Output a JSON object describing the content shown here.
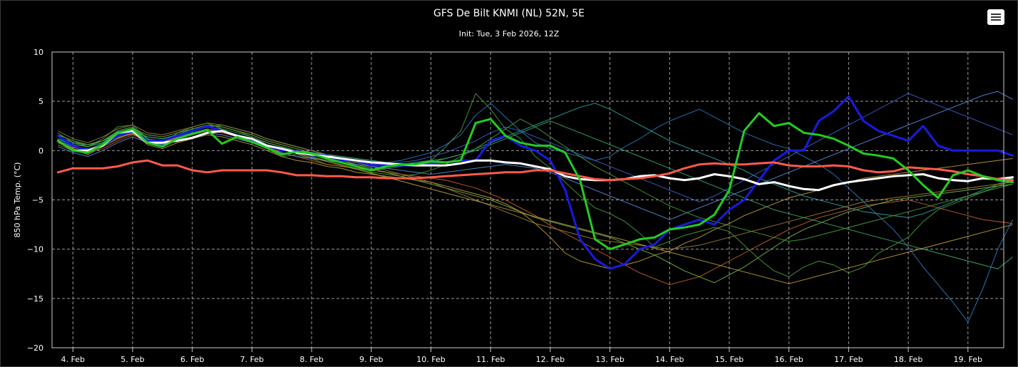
{
  "header": {
    "title": "GFS De Bilt KNMI (NL) 52N, 5E",
    "subtitle": "Init: Tue, 3 Feb 2026, 12Z"
  },
  "toolbar": {
    "menu_icon": "hamburger-menu-icon"
  },
  "chart_data": {
    "type": "line",
    "title": "GFS De Bilt KNMI (NL) 52N, 5E",
    "subtitle": "Init: Tue, 3 Feb 2026, 12Z",
    "xlabel": "",
    "ylabel": "850 hPa Temp. (°C)",
    "x_unit": "days (Feb 2026)",
    "xlim": [
      3.65,
      19.6
    ],
    "ylim": [
      -20,
      10
    ],
    "yticks": [
      10,
      5,
      0,
      -5,
      -10,
      -15,
      -20
    ],
    "yticks_labels": [
      "10",
      "5",
      "0",
      "−5",
      "−10",
      "−15",
      "−20"
    ],
    "xticks": [
      4,
      5,
      6,
      7,
      8,
      9,
      10,
      11,
      12,
      13,
      14,
      15,
      16,
      17,
      18,
      19
    ],
    "xticks_labels": [
      "4. Feb",
      "5. Feb",
      "6. Feb",
      "7. Feb",
      "8. Feb",
      "9. Feb",
      "10. Feb",
      "11. Feb",
      "12. Feb",
      "13. Feb",
      "14. Feb",
      "15. Feb",
      "16. Feb",
      "17. Feb",
      "18. Feb",
      "19. Feb"
    ],
    "grid": true,
    "background": "#000000",
    "x_step_days": 0.25,
    "x_start_day": 3.75,
    "ensemble_colors": [
      "#4a9b3a",
      "#b89a3c",
      "#2e78b8",
      "#2ea3a3",
      "#c0602a",
      "#7ab04a",
      "#3c5fc8",
      "#9a7a3a",
      "#38a86a",
      "#5a8ad8"
    ],
    "series": [
      {
        "color": "#1a1ae0",
        "width": 3,
        "values": [
          1.5,
          0.5,
          0,
          0.5,
          1.5,
          2,
          1,
          1,
          1.5,
          2,
          2.5,
          2,
          1.5,
          1,
          0.5,
          0,
          0,
          -0.5,
          -0.5,
          -1,
          -1,
          -1.5,
          -1.5,
          -1.5,
          -1.5,
          -1.3,
          -1.2,
          -1.0,
          -1.0,
          1.0,
          1.5,
          0.5,
          0.0,
          -1.0,
          -4.0,
          -9.0,
          -11.0,
          -12.0,
          -11.5,
          -10.0,
          -9.5,
          -8.0,
          -7.5,
          -7.0,
          -7.5,
          -6.0,
          -5.0,
          -3.0,
          -1.0,
          0.0,
          0.0,
          3.0,
          4.0,
          5.5,
          3.0,
          2.0,
          1.5,
          1.0,
          2.5,
          0.5,
          0.0,
          0.0,
          0.0,
          0.0,
          -0.5
        ]
      },
      {
        "color": "#ffffff",
        "width": 3,
        "values": [
          1,
          0,
          0,
          0.5,
          1.8,
          2,
          0.8,
          0.8,
          1,
          1.3,
          1.8,
          2,
          1.5,
          1.2,
          0.5,
          0.2,
          -0.2,
          -0.4,
          -0.6,
          -0.8,
          -1,
          -1.2,
          -1.3,
          -1.4,
          -1.5,
          -1.5,
          -1.5,
          -1.3,
          -1.0,
          -1.0,
          -1.2,
          -1.3,
          -1.6,
          -1.9,
          -2.6,
          -2.9,
          -3.0,
          -3.0,
          -2.9,
          -2.6,
          -2.5,
          -2.8,
          -3.0,
          -2.8,
          -2.4,
          -2.6,
          -2.9,
          -3.4,
          -3.2,
          -3.6,
          -3.9,
          -4.0,
          -3.5,
          -3.2,
          -3.0,
          -2.8,
          -2.6,
          -2.5,
          -2.4,
          -2.8,
          -3.0,
          -3.1,
          -2.8,
          -2.9,
          -2.7
        ]
      },
      {
        "color": "#ff5a4a",
        "width": 3,
        "values": [
          -2.2,
          -1.8,
          -1.8,
          -1.8,
          -1.6,
          -1.2,
          -1.0,
          -1.5,
          -1.5,
          -2.0,
          -2.2,
          -2.0,
          -2.0,
          -2.0,
          -2.0,
          -2.2,
          -2.5,
          -2.5,
          -2.6,
          -2.6,
          -2.7,
          -2.7,
          -2.8,
          -2.8,
          -2.8,
          -2.7,
          -2.6,
          -2.5,
          -2.4,
          -2.3,
          -2.2,
          -2.2,
          -2.0,
          -2.0,
          -2.3,
          -2.6,
          -2.9,
          -3.0,
          -2.9,
          -2.8,
          -2.6,
          -2.3,
          -1.8,
          -1.4,
          -1.3,
          -1.4,
          -1.4,
          -1.3,
          -1.2,
          -1.5,
          -1.6,
          -1.6,
          -1.5,
          -1.6,
          -2.0,
          -2.2,
          -2.1,
          -1.7,
          -1.8,
          -1.9,
          -2.1,
          -2.4,
          -2.6,
          -2.9,
          -3.0
        ]
      },
      {
        "color": "#22cc22",
        "width": 3,
        "values": [
          1,
          0,
          -0.2,
          0.6,
          1.8,
          2.2,
          0.8,
          0.4,
          1.2,
          1.7,
          2.1,
          0.7,
          1.4,
          0.9,
          0.3,
          -0.4,
          -0.1,
          -0.3,
          -0.8,
          -1.2,
          -1.6,
          -2.0,
          -1.6,
          -1.4,
          -1.4,
          -1.1,
          -1.2,
          -1.0,
          2.8,
          3.2,
          1.5,
          0.8,
          0.5,
          0.5,
          -0.2,
          -3.0,
          -9.0,
          -10.0,
          -9.5,
          -9.0,
          -8.8,
          -8.0,
          -7.8,
          -7.5,
          -6.5,
          -4.0,
          2.0,
          3.8,
          2.5,
          2.8,
          1.8,
          1.6,
          1.2,
          0.5,
          -0.3,
          -0.5,
          -0.8,
          -2.0,
          -3.5,
          -4.8,
          -2.5,
          -2.0,
          -2.6,
          -3.0,
          -3.2
        ]
      }
    ],
    "ensemble": [
      [
        1.8,
        0.8,
        0.4,
        1.2,
        2.4,
        2.6,
        1.2,
        0.6,
        1.8,
        2.4,
        2.8,
        2.2,
        1.4,
        1.0,
        0.2,
        -0.6,
        -0.4,
        -0.8,
        -1.4,
        -1.6,
        -1.8,
        -2.0,
        -1.8,
        -1.6,
        -1.2,
        -1.0,
        0.4,
        2.0,
        5.8,
        4.2,
        2.2,
        1.2,
        -0.6,
        -1.8,
        -3.2,
        -4.6,
        -5.8,
        -6.4,
        -7.2,
        -8.4,
        -9.8,
        -9.2,
        -8.6,
        -8.2,
        -7.8,
        -8.2,
        -9.6,
        -11.0,
        -12.2,
        -12.8,
        -11.8,
        -11.2,
        -11.6,
        -12.4,
        -11.8,
        -10.4,
        -9.6,
        -8.8,
        -7.2,
        -6.0,
        -5.4,
        -4.8,
        -4.2,
        -3.6,
        -3.0
      ],
      [
        0.8,
        0.2,
        -0.4,
        0.4,
        1.2,
        1.8,
        0.6,
        0.2,
        0.8,
        1.2,
        1.6,
        1.4,
        1.0,
        0.6,
        0.0,
        -0.6,
        -1.0,
        -1.2,
        -1.6,
        -1.8,
        -2.2,
        -2.4,
        -2.6,
        -2.8,
        -3.0,
        -3.2,
        -3.6,
        -4.0,
        -4.4,
        -4.8,
        -5.4,
        -6.2,
        -7.4,
        -8.8,
        -10.4,
        -11.2,
        -11.6,
        -12.0,
        -11.6,
        -11.2,
        -10.6,
        -10.2,
        -9.4,
        -8.8,
        -8.0,
        -7.4,
        -6.6,
        -6.0,
        -5.4,
        -4.8,
        -4.4,
        -4.0,
        -3.6,
        -3.2,
        -2.8,
        -2.6,
        -2.4,
        -2.2,
        -2.0,
        -1.8,
        -1.6,
        -1.4,
        -1.2,
        -1.0,
        -0.8
      ],
      [
        1.2,
        0.4,
        0.0,
        0.8,
        2.0,
        2.4,
        1.0,
        0.6,
        1.4,
        2.0,
        2.4,
        2.0,
        1.6,
        1.2,
        0.6,
        0.2,
        0.0,
        -0.2,
        -0.4,
        -0.6,
        -0.8,
        -1.0,
        -1.2,
        -1.0,
        -0.6,
        -0.2,
        0.6,
        1.6,
        3.6,
        4.8,
        3.4,
        2.0,
        0.8,
        0.2,
        -0.2,
        -0.6,
        -1.0,
        -0.6,
        0.4,
        1.2,
        2.2,
        3.0,
        3.6,
        4.2,
        3.4,
        2.6,
        1.8,
        1.2,
        0.6,
        0.2,
        -0.6,
        -1.4,
        -2.4,
        -3.8,
        -5.2,
        -6.6,
        -8.0,
        -9.8,
        -11.8,
        -13.6,
        -15.4,
        -17.4,
        -14.0,
        -10.0,
        -7.0
      ],
      [
        1.4,
        0.8,
        0.6,
        1.0,
        1.6,
        2.0,
        1.4,
        1.2,
        1.6,
        2.0,
        2.4,
        2.6,
        2.2,
        1.8,
        1.2,
        0.8,
        0.4,
        0.0,
        -0.4,
        -0.8,
        -1.2,
        -1.4,
        -1.6,
        -1.6,
        -1.4,
        -1.2,
        -0.8,
        -0.4,
        0.2,
        0.8,
        1.4,
        2.0,
        2.6,
        3.2,
        3.8,
        4.4,
        4.8,
        4.2,
        3.4,
        2.6,
        1.8,
        1.0,
        0.4,
        -0.2,
        -0.8,
        -1.4,
        -2.0,
        -2.8,
        -3.4,
        -4.0,
        -4.6,
        -5.0,
        -5.4,
        -5.8,
        -6.2,
        -6.4,
        -6.6,
        -6.8,
        -6.4,
        -5.8,
        -5.2,
        -4.6,
        -4.0,
        -3.4,
        -2.8
      ],
      [
        0.6,
        0.0,
        -0.2,
        0.2,
        1.0,
        1.6,
        1.0,
        0.8,
        1.2,
        1.6,
        2.0,
        1.8,
        1.4,
        1.0,
        0.4,
        -0.2,
        -0.6,
        -1.0,
        -1.4,
        -1.6,
        -1.8,
        -2.0,
        -2.2,
        -2.4,
        -2.6,
        -2.8,
        -3.0,
        -3.4,
        -3.8,
        -4.4,
        -5.0,
        -5.8,
        -6.6,
        -7.6,
        -8.4,
        -9.2,
        -10.0,
        -10.8,
        -11.6,
        -12.4,
        -13.0,
        -13.6,
        -13.2,
        -12.8,
        -12.0,
        -11.2,
        -10.4,
        -9.6,
        -8.8,
        -8.0,
        -7.4,
        -6.8,
        -6.4,
        -6.0,
        -5.6,
        -5.4,
        -5.2,
        -5.0,
        -5.4,
        -5.8,
        -6.2,
        -6.6,
        -7.0,
        -7.2,
        -7.4
      ],
      [
        1.6,
        1.0,
        0.6,
        1.0,
        1.8,
        2.2,
        1.6,
        1.4,
        1.8,
        2.2,
        2.6,
        2.4,
        2.0,
        1.6,
        1.0,
        0.6,
        0.2,
        -0.2,
        -0.6,
        -1.0,
        -1.4,
        -1.8,
        -2.2,
        -2.6,
        -3.0,
        -3.4,
        -3.8,
        -4.2,
        -4.6,
        -5.0,
        -5.6,
        -6.2,
        -6.8,
        -7.2,
        -7.6,
        -8.0,
        -8.4,
        -8.8,
        -9.4,
        -10.0,
        -10.6,
        -11.4,
        -12.2,
        -12.8,
        -13.4,
        -12.6,
        -11.8,
        -10.8,
        -9.8,
        -8.8,
        -8.0,
        -7.4,
        -6.8,
        -6.2,
        -5.8,
        -5.4,
        -5.0,
        -4.8,
        -4.6,
        -4.4,
        -4.2,
        -4.0,
        -3.8,
        -3.6,
        -3.4
      ],
      [
        1.0,
        0.4,
        0.2,
        0.6,
        1.4,
        1.8,
        1.2,
        1.0,
        1.4,
        1.8,
        2.2,
        2.0,
        1.6,
        1.2,
        0.8,
        0.4,
        0.0,
        -0.4,
        -0.8,
        -1.0,
        -1.2,
        -1.4,
        -1.4,
        -1.2,
        -1.0,
        -0.6,
        -0.2,
        0.4,
        1.0,
        1.8,
        2.4,
        2.0,
        1.4,
        0.8,
        0.2,
        -0.4,
        -1.0,
        -1.6,
        -2.2,
        -2.8,
        -3.4,
        -4.0,
        -4.6,
        -5.2,
        -4.6,
        -3.8,
        -3.0,
        -2.2,
        -1.4,
        -0.6,
        0.2,
        1.0,
        1.8,
        2.6,
        3.4,
        4.2,
        5.0,
        5.8,
        5.2,
        4.6,
        4.0,
        3.4,
        2.8,
        2.2,
        1.6
      ],
      [
        2.0,
        1.2,
        0.8,
        1.4,
        2.2,
        2.6,
        1.8,
        1.6,
        2.0,
        2.4,
        2.8,
        2.6,
        2.2,
        1.8,
        1.2,
        0.8,
        0.4,
        0.0,
        -0.4,
        -0.8,
        -1.2,
        -1.6,
        -2.0,
        -2.4,
        -2.8,
        -3.2,
        -3.8,
        -4.4,
        -5.0,
        -5.6,
        -6.2,
        -6.8,
        -7.4,
        -7.8,
        -8.2,
        -8.6,
        -9.0,
        -9.2,
        -9.4,
        -9.6,
        -9.8,
        -10.0,
        -9.8,
        -9.6,
        -9.2,
        -8.8,
        -8.4,
        -8.0,
        -7.6,
        -7.2,
        -6.8,
        -6.4,
        -6.0,
        -5.6,
        -5.2,
        -5.0,
        -4.8,
        -4.6,
        -4.4,
        -4.2,
        -4.0,
        -3.8,
        -3.6,
        -3.4,
        -3.2
      ],
      [
        1.2,
        0.6,
        0.4,
        0.8,
        1.6,
        2.0,
        1.4,
        1.2,
        1.6,
        2.0,
        2.4,
        2.2,
        1.8,
        1.4,
        0.8,
        0.4,
        0.0,
        -0.2,
        -0.4,
        -0.6,
        -0.8,
        -1.0,
        -1.2,
        -1.4,
        -1.2,
        -1.0,
        -0.8,
        -0.4,
        0.0,
        0.6,
        1.2,
        1.8,
        2.4,
        3.0,
        2.4,
        1.8,
        1.2,
        0.6,
        0.0,
        -0.6,
        -1.2,
        -1.8,
        -2.4,
        -3.0,
        -3.6,
        -4.2,
        -4.8,
        -5.4,
        -6.0,
        -6.4,
        -6.8,
        -7.2,
        -7.6,
        -8.0,
        -8.4,
        -8.8,
        -9.2,
        -9.6,
        -10.0,
        -10.4,
        -10.8,
        -11.2,
        -11.6,
        -12.0,
        -10.8
      ],
      [
        0.4,
        -0.2,
        -0.6,
        0.0,
        0.8,
        1.4,
        0.8,
        0.6,
        1.0,
        1.4,
        1.8,
        1.6,
        1.2,
        0.8,
        0.2,
        -0.2,
        -0.6,
        -0.8,
        -1.0,
        -1.2,
        -1.4,
        -1.6,
        -1.8,
        -2.0,
        -2.2,
        -2.4,
        -2.2,
        -2.0,
        -1.8,
        -1.6,
        -1.4,
        -1.6,
        -1.8,
        -2.2,
        -2.8,
        -3.4,
        -4.0,
        -4.6,
        -5.2,
        -5.8,
        -6.4,
        -7.0,
        -6.4,
        -5.8,
        -5.2,
        -4.6,
        -4.0,
        -3.4,
        -2.8,
        -2.2,
        -1.6,
        -1.0,
        -0.4,
        0.2,
        0.8,
        1.4,
        2.0,
        2.6,
        3.2,
        3.8,
        4.4,
        5.0,
        5.6,
        6.0,
        5.2
      ],
      [
        1.6,
        1.0,
        0.4,
        1.0,
        2.0,
        2.4,
        1.2,
        0.8,
        1.6,
        2.2,
        2.6,
        2.4,
        2.0,
        1.4,
        0.8,
        0.4,
        0.0,
        -0.6,
        -1.0,
        -1.4,
        -1.8,
        -2.2,
        -2.4,
        -2.6,
        -2.4,
        -2.0,
        -1.4,
        -0.6,
        0.2,
        1.2,
        2.2,
        3.2,
        2.4,
        1.4,
        0.4,
        -0.6,
        -1.6,
        -2.4,
        -3.2,
        -4.0,
        -4.8,
        -5.6,
        -6.2,
        -6.8,
        -7.2,
        -7.6,
        -8.0,
        -8.4,
        -8.8,
        -9.2,
        -9.0,
        -8.6,
        -8.2,
        -7.8,
        -7.4,
        -7.0,
        -6.6,
        -6.2,
        -5.8,
        -5.4,
        -5.0,
        -4.6,
        -4.2,
        -3.8,
        -3.4
      ],
      [
        0.9,
        0.3,
        0.1,
        0.5,
        1.3,
        1.7,
        1.1,
        0.9,
        1.3,
        1.7,
        2.1,
        1.9,
        1.5,
        1.1,
        0.5,
        0.1,
        -0.3,
        -0.7,
        -1.1,
        -1.5,
        -1.9,
        -2.3,
        -2.7,
        -3.1,
        -3.5,
        -3.9,
        -4.3,
        -4.7,
        -5.1,
        -5.5,
        -5.9,
        -6.3,
        -6.7,
        -7.1,
        -7.5,
        -7.9,
        -8.3,
        -8.7,
        -9.1,
        -9.5,
        -9.9,
        -10.3,
        -10.7,
        -11.1,
        -11.5,
        -11.9,
        -12.3,
        -12.7,
        -13.1,
        -13.5,
        -13.1,
        -12.7,
        -12.3,
        -11.9,
        -11.5,
        -11.1,
        -10.7,
        -10.3,
        -9.9,
        -9.5,
        -9.1,
        -8.7,
        -8.3,
        -7.9,
        -7.5
      ]
    ]
  }
}
